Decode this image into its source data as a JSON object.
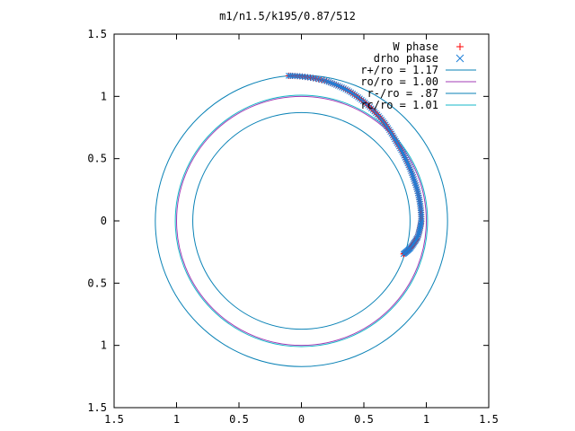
{
  "chart_data": {
    "type": "scatter",
    "title": "m1/n1.5/k195/0.87/512",
    "xlim": [
      -1.5,
      1.5
    ],
    "ylim": [
      -1.5,
      1.5
    ],
    "x_ticks": [
      -1.5,
      -1,
      -0.5,
      0,
      0.5,
      1,
      1.5
    ],
    "y_ticks": [
      -1.5,
      -1,
      -0.5,
      0,
      0.5,
      1,
      1.5
    ],
    "x_tick_labels": [
      "1.5",
      "1",
      "0.5",
      "0",
      "0.5",
      "1",
      "1.5"
    ],
    "y_tick_labels": [
      "1.5",
      "1",
      "0.5",
      "0",
      "0.5",
      "1",
      "1.5"
    ],
    "legend_position": "top-right",
    "grid": false,
    "series": [
      {
        "name": "W phase",
        "kind": "points",
        "marker": "plus",
        "color": "#ff0000",
        "points": []
      },
      {
        "name": "drho phase",
        "kind": "points",
        "marker": "cross",
        "color": "#1f7fd8",
        "points": []
      },
      {
        "name": "r+/ro = 1.17",
        "kind": "circle",
        "radius": 1.17,
        "color": "#0a82b6"
      },
      {
        "name": "ro/ro = 1.00",
        "kind": "circle",
        "radius": 1.0,
        "color": "#a23bb5"
      },
      {
        "name": "r-/ro = .87",
        "kind": "circle",
        "radius": 0.87,
        "color": "#0a82b6"
      },
      {
        "name": "rc/ro = 1.01",
        "kind": "circle",
        "radius": 1.01,
        "color": "#14b7c9"
      }
    ],
    "spiral": {
      "start": {
        "angle_deg": 95,
        "radius": 1.17
      },
      "end": {
        "angle_deg": -18,
        "radius": 0.86
      },
      "path": [
        [
          95,
          1.17
        ],
        [
          80,
          1.14
        ],
        [
          70,
          1.11
        ],
        [
          60,
          1.07
        ],
        [
          50,
          1.03
        ],
        [
          40,
          0.99
        ],
        [
          30,
          0.97
        ],
        [
          20,
          0.96
        ],
        [
          10,
          0.96
        ],
        [
          0,
          0.96
        ],
        [
          -8,
          0.94
        ],
        [
          -14,
          0.9
        ],
        [
          -18,
          0.86
        ]
      ],
      "count": 128
    }
  }
}
